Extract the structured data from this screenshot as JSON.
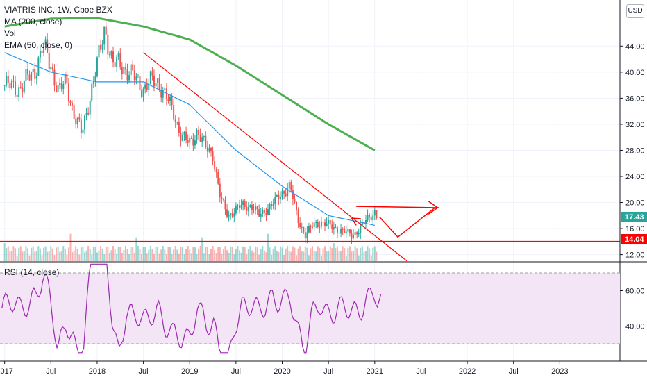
{
  "header": {
    "symbol_line": "VIATRIS INC, 1W, Cboe BZX",
    "ma_label": "MA (200, close)",
    "vol_label": "Vol",
    "ema_label": "EMA (50, close, 0)",
    "currency": "USD"
  },
  "rsi_panel": {
    "label": "RSI (14, close)"
  },
  "colors": {
    "up": "#26a69a",
    "down": "#ef5350",
    "ma200": "#4caf50",
    "ema50": "#2196f3",
    "rsi": "#9c27b0",
    "rsi_band": "#f3e5f5",
    "annotation": "#ff0000"
  },
  "chart_data": {
    "type": "candlestick",
    "title": "VIATRIS INC, 1W, Cboe BZX",
    "price_axis": {
      "ticks": [
        "44.00",
        "40.00",
        "36.00",
        "32.00",
        "28.00",
        "24.00",
        "20.00",
        "16.00",
        "12.00"
      ],
      "ylim": [
        11.0,
        50.0
      ]
    },
    "time_axis": {
      "ticks": [
        "2017",
        "Jul",
        "2018",
        "Jul",
        "2019",
        "Jul",
        "2020",
        "Jul",
        "2021",
        "Jul",
        "2022",
        "Jul",
        "2023"
      ]
    },
    "price_labels": {
      "last": "17.43",
      "line": "14.04"
    },
    "ohlc_path": [
      [
        "2017-01",
        38.0
      ],
      [
        "2017-03",
        37.5
      ],
      [
        "2017-05",
        40.5
      ],
      [
        "2017-06",
        44.0
      ],
      [
        "2017-07",
        41.0
      ],
      [
        "2017-08",
        37.0
      ],
      [
        "2017-09",
        38.5
      ],
      [
        "2017-10",
        33.5
      ],
      [
        "2017-11",
        30.5
      ],
      [
        "2017-12",
        36.0
      ],
      [
        "2018-01",
        41.0
      ],
      [
        "2018-02",
        47.0
      ],
      [
        "2018-03",
        41.0
      ],
      [
        "2018-04",
        41.5
      ],
      [
        "2018-05",
        40.0
      ],
      [
        "2018-06",
        39.0
      ],
      [
        "2018-07",
        37.5
      ],
      [
        "2018-08",
        38.5
      ],
      [
        "2018-09",
        38.5
      ],
      [
        "2018-10",
        36.0
      ],
      [
        "2018-11",
        33.5
      ],
      [
        "2018-12",
        30.0
      ],
      [
        "2019-01",
        29.0
      ],
      [
        "2019-02",
        31.0
      ],
      [
        "2019-03",
        28.5
      ],
      [
        "2019-04",
        27.5
      ],
      [
        "2019-05",
        20.5
      ],
      [
        "2019-06",
        18.0
      ],
      [
        "2019-07",
        19.0
      ],
      [
        "2019-08",
        19.5
      ],
      [
        "2019-09",
        19.5
      ],
      [
        "2019-10",
        18.0
      ],
      [
        "2019-11",
        19.0
      ],
      [
        "2019-12",
        20.0
      ],
      [
        "2020-01",
        21.5
      ],
      [
        "2020-02",
        22.5
      ],
      [
        "2020-03",
        17.5
      ],
      [
        "2020-04",
        15.0
      ],
      [
        "2020-05",
        16.5
      ],
      [
        "2020-06",
        17.0
      ],
      [
        "2020-07",
        16.5
      ],
      [
        "2020-08",
        16.0
      ],
      [
        "2020-09",
        15.5
      ],
      [
        "2020-10",
        15.0
      ],
      [
        "2020-11",
        15.8
      ],
      [
        "2020-12",
        17.5
      ],
      [
        "2021-01",
        18.6
      ],
      [
        "2021-01b",
        17.43
      ]
    ],
    "ma200": [
      [
        "2017-01",
        47.0
      ],
      [
        "2017-07",
        48.2
      ],
      [
        "2018-01",
        48.3
      ],
      [
        "2018-07",
        47.0
      ],
      [
        "2019-01",
        45.0
      ],
      [
        "2019-07",
        41.0
      ],
      [
        "2020-01",
        36.5
      ],
      [
        "2020-07",
        32.0
      ],
      [
        "2021-01",
        28.0
      ]
    ],
    "ema50": [
      [
        "2017-01",
        43.0
      ],
      [
        "2017-07",
        40.0
      ],
      [
        "2018-01",
        38.5
      ],
      [
        "2018-07",
        38.5
      ],
      [
        "2019-01",
        35.0
      ],
      [
        "2019-07",
        28.0
      ],
      [
        "2020-01",
        22.5
      ],
      [
        "2020-07",
        18.0
      ],
      [
        "2021-01",
        16.5
      ]
    ],
    "rsi": {
      "ticks": [
        "60.00",
        "40.00"
      ],
      "upper": 70,
      "lower": 30
    }
  }
}
